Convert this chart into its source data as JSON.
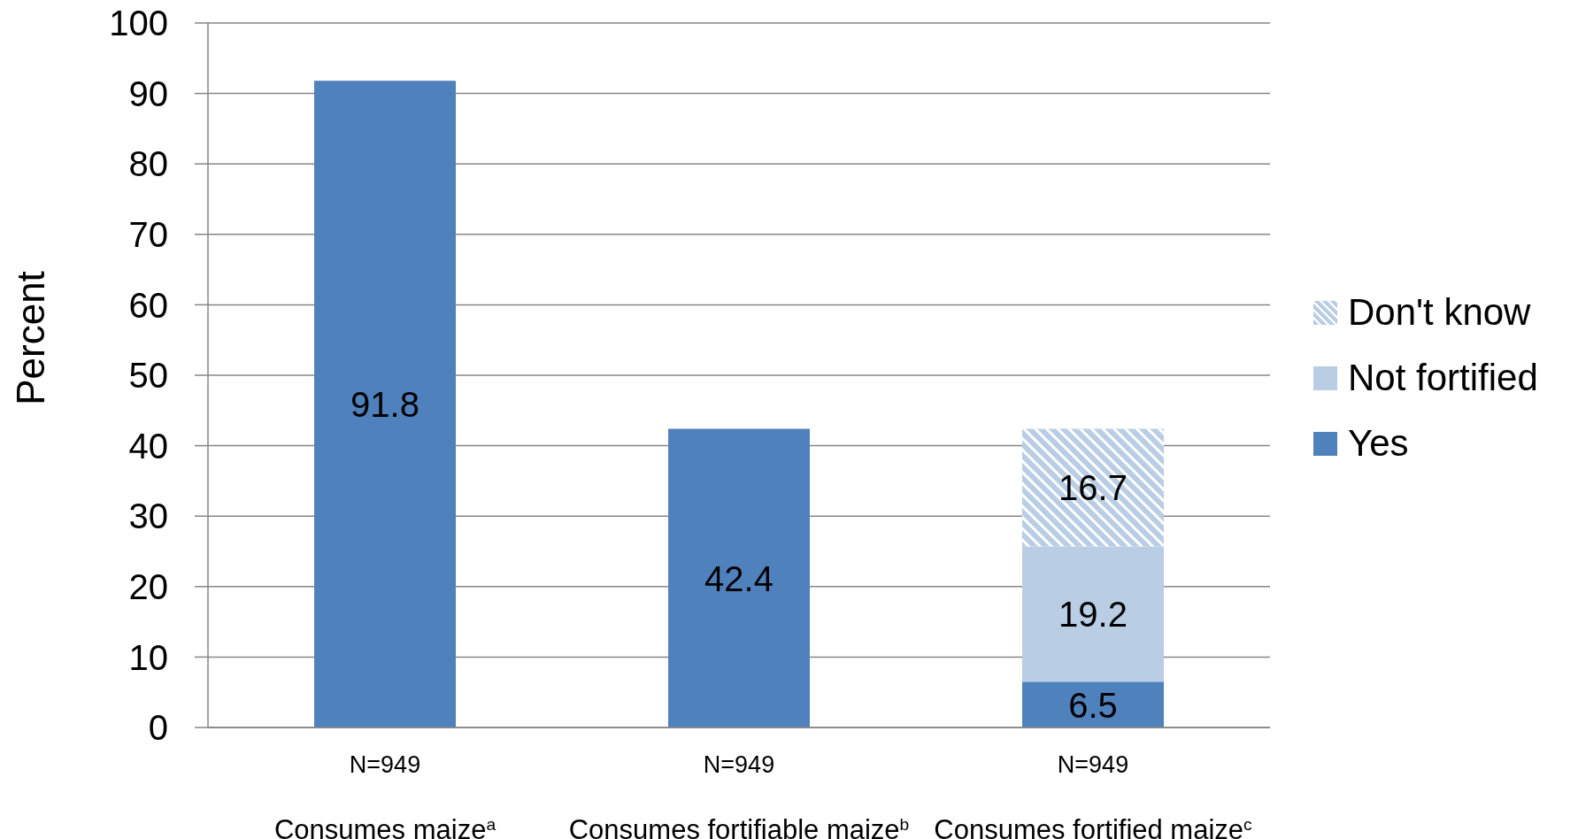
{
  "chart_data": {
    "type": "bar",
    "stacked": true,
    "ylabel": "Percent",
    "categories": [
      "Consumes maize$^{a}$",
      "Consumes fortifiable maize$^{b}$",
      "Consumes fortified maize$^{c}$"
    ],
    "series": [
      {
        "name": "Yes",
        "color": "#4f81bd",
        "values": [
          91.8,
          42.4,
          6.5
        ]
      },
      {
        "name": "Not fortified",
        "color": "#b9cde5",
        "values": [
          null,
          null,
          19.2
        ]
      },
      {
        "name": "Don't know",
        "color": "#b9cde5",
        "values": [
          null,
          null,
          16.7
        ]
      }
    ],
    "ylim": [
      0,
      100
    ],
    "yticks": [
      0,
      10,
      20,
      30,
      40,
      50,
      60,
      70,
      80,
      90,
      100
    ],
    "grid": "y",
    "legend": "right",
    "data_labels": true,
    "annotations": [
      "N=949",
      "N=949",
      "N=949"
    ]
  }
}
